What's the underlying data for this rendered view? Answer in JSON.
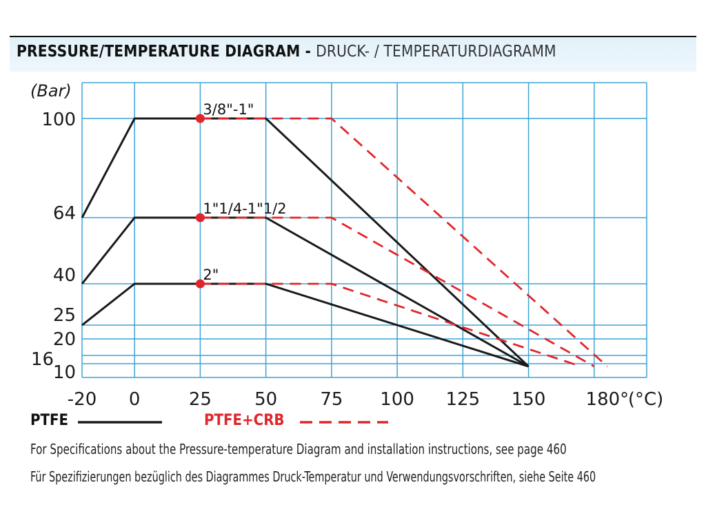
{
  "header": {
    "title_en": "PRESSURE/TEMPERATURE DIAGRAM",
    "separator": "-",
    "title_de": "DRUCK- / TEMPERATURDIAGRAMM"
  },
  "colors": {
    "grid": "#3ba3d6",
    "ptfe": "#1a1a1a",
    "ptfe_crb": "#e0262a",
    "header_band": "#e5f3fa"
  },
  "chart_data": {
    "type": "line",
    "ylabel": "(Bar)",
    "xlabel": "",
    "x_unit_label": "(°C)",
    "xlim": [
      -20,
      195
    ],
    "ylim": [
      6,
      113
    ],
    "x_ticks": [
      {
        "value": -20,
        "label": "-20"
      },
      {
        "value": 0,
        "label": "0"
      },
      {
        "value": 25,
        "label": "25"
      },
      {
        "value": 50,
        "label": "50"
      },
      {
        "value": 75,
        "label": "75"
      },
      {
        "value": 100,
        "label": "100"
      },
      {
        "value": 125,
        "label": "125"
      },
      {
        "value": 150,
        "label": "150"
      },
      {
        "value": 180,
        "label": "180°"
      }
    ],
    "x_grid": [
      -20,
      0,
      25,
      50,
      75,
      100,
      125,
      150,
      175,
      195
    ],
    "y_ticks": [
      {
        "value": 100,
        "label": "100"
      },
      {
        "value": 64,
        "label": "64"
      },
      {
        "value": 40,
        "label": "40"
      },
      {
        "value": 25,
        "label": "25"
      },
      {
        "value": 20,
        "label": "20"
      },
      {
        "value": 16,
        "label": "16"
      },
      {
        "value": 10,
        "label": "10"
      }
    ],
    "y_grid": [
      113,
      100,
      64,
      40,
      25,
      20,
      14,
      11,
      6
    ],
    "grid": true,
    "legend_position": "bottom-left",
    "legend": [
      {
        "name": "PTFE",
        "style": "solid"
      },
      {
        "name": "PTFE+CRB",
        "style": "dashed"
      }
    ],
    "series": [
      {
        "group": "PTFE",
        "size": "3/8\"-1\"",
        "style": "solid",
        "points": [
          [
            -20,
            64
          ],
          [
            0,
            100
          ],
          [
            50,
            100
          ],
          [
            150,
            10
          ]
        ]
      },
      {
        "group": "PTFE+CRB",
        "size": "3/8\"-1\"",
        "style": "dashed",
        "points": [
          [
            25,
            100
          ],
          [
            75,
            100
          ],
          [
            180,
            10
          ]
        ]
      },
      {
        "group": "PTFE",
        "size": "1\"1/4-1\"1/2",
        "style": "solid",
        "points": [
          [
            -20,
            40
          ],
          [
            0,
            64
          ],
          [
            50,
            64
          ],
          [
            150,
            10
          ]
        ]
      },
      {
        "group": "PTFE+CRB",
        "size": "1\"1/4-1\"1/2",
        "style": "dashed",
        "points": [
          [
            25,
            64
          ],
          [
            75,
            64
          ],
          [
            175,
            10
          ]
        ]
      },
      {
        "group": "PTFE",
        "size": "2\"",
        "style": "solid",
        "points": [
          [
            -20,
            25
          ],
          [
            0,
            40
          ],
          [
            50,
            40
          ],
          [
            150,
            10
          ]
        ]
      },
      {
        "group": "PTFE+CRB",
        "size": "2\"",
        "style": "dashed",
        "points": [
          [
            25,
            40
          ],
          [
            75,
            40
          ],
          [
            170,
            10
          ]
        ]
      }
    ],
    "markers": [
      {
        "x": 25,
        "y": 100,
        "label": "3/8\"-1\""
      },
      {
        "x": 25,
        "y": 64,
        "label": "1\"1/4-1\"1/2"
      },
      {
        "x": 25,
        "y": 40,
        "label": "2\""
      }
    ]
  },
  "footnotes": {
    "en": "For Specifications about the Pressure-temperature Diagram and installation instructions, see page 460",
    "de": "Für Spezifizierungen bezüglich des Diagrammes Druck-Temperatur und Verwendungsvorschriften, siehe Seite 460"
  }
}
